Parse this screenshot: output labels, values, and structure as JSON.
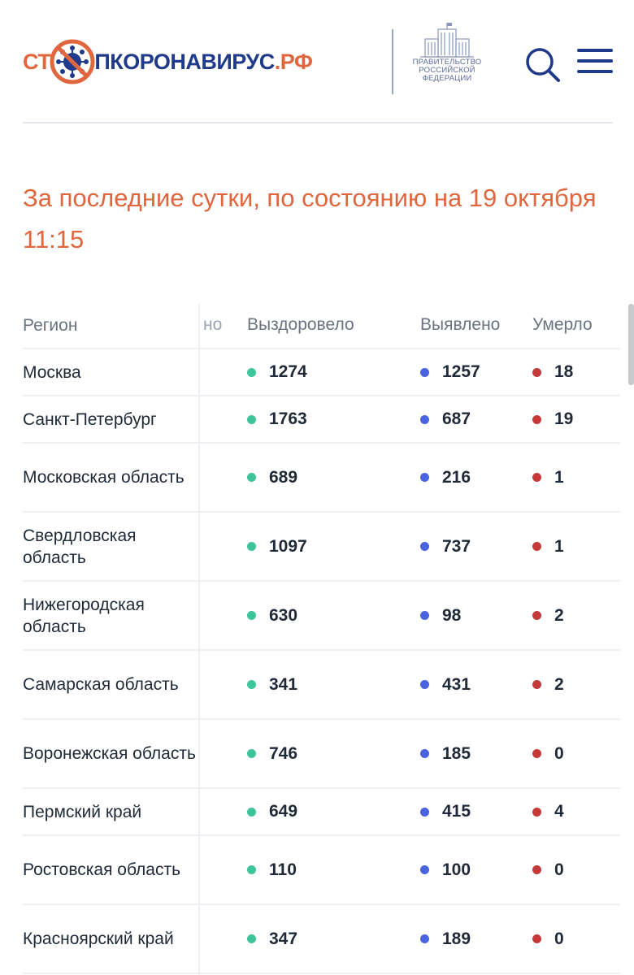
{
  "header": {
    "logo": {
      "part1": "СТ",
      "part2": "ПКОРОНАВИРУС",
      "part3": ".РФ"
    },
    "gov_label": [
      "ПРАВИТЕЛЬСТВО",
      "РОССИЙСКОЙ",
      "ФЕДЕРАЦИИ"
    ]
  },
  "title": "За последние сутки, по состоянию на 19 октября 11:15",
  "table": {
    "headers": {
      "region": "Регион",
      "hidden": "но",
      "recovered": "Выздоровело",
      "detected": "Выявлено",
      "died": "Умерло"
    },
    "rows": [
      {
        "region": "Москва",
        "recovered": "1274",
        "detected": "1257",
        "died": "18"
      },
      {
        "region": "Санкт-Петербург",
        "recovered": "1763",
        "detected": "687",
        "died": "19"
      },
      {
        "region": "Московская область",
        "recovered": "689",
        "detected": "216",
        "died": "1"
      },
      {
        "region": "Свердловская область",
        "recovered": "1097",
        "detected": "737",
        "died": "1"
      },
      {
        "region": "Нижегородская область",
        "recovered": "630",
        "detected": "98",
        "died": "2"
      },
      {
        "region": "Самарская область",
        "recovered": "341",
        "detected": "431",
        "died": "2"
      },
      {
        "region": "Воронежская область",
        "recovered": "746",
        "detected": "185",
        "died": "0"
      },
      {
        "region": "Пермский край",
        "recovered": "649",
        "detected": "415",
        "died": "4"
      },
      {
        "region": "Ростовская область",
        "recovered": "110",
        "detected": "100",
        "died": "0"
      },
      {
        "region": "Красноярский край",
        "recovered": "347",
        "detected": "189",
        "died": "0"
      }
    ]
  },
  "colors": {
    "accent": "#e0663e",
    "brand": "#1f3a8a",
    "recovered_dot": "#3ec49a",
    "detected_dot": "#4a63e0",
    "died_dot": "#c43a3a"
  },
  "icons": {
    "logo_virus": "virus-icon",
    "government": "government-building-icon",
    "search": "search-icon",
    "menu": "hamburger-menu-icon"
  }
}
